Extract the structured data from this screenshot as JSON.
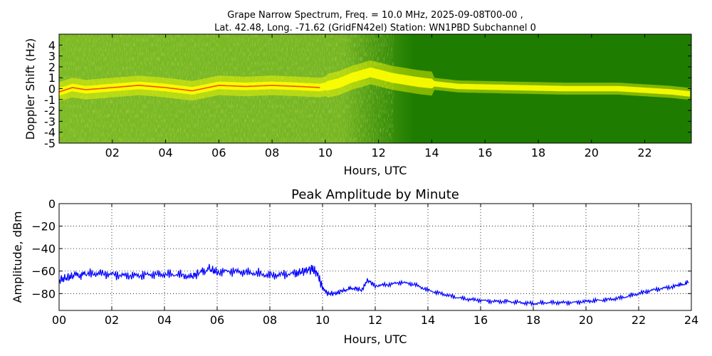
{
  "chart_data": [
    {
      "type": "heatmap",
      "title_line1": "Grape Narrow Spectrum, Freq. = 10.0 MHz, 2025-09-08T00-00 ,",
      "title_line2": "Lat.  42.48, Long. -71.62 (GridFN42el) Station: WN1PBD Subchannel 0",
      "xlabel": "Hours, UTC",
      "ylabel": "Doppler Shift (Hz)",
      "xlim": [
        0,
        23.75
      ],
      "ylim": [
        -5,
        5
      ],
      "x_ticks": [
        "02",
        "04",
        "06",
        "08",
        "10",
        "12",
        "14",
        "16",
        "18",
        "20",
        "22"
      ],
      "x_tick_values": [
        2,
        4,
        6,
        8,
        10,
        12,
        14,
        16,
        18,
        20,
        22
      ],
      "y_ticks": [
        "4",
        "3",
        "2",
        "1",
        "0",
        "-1",
        "-2",
        "-3",
        "-4",
        "-5"
      ],
      "y_tick_values": [
        4,
        3,
        2,
        1,
        0,
        -1,
        -2,
        -3,
        -4,
        -5
      ],
      "colors": {
        "background": "#1e7d00",
        "noise": "#9acd32",
        "signal": "#ffff00",
        "peak": "#ff2a00"
      },
      "ridge": {
        "hours": [
          0,
          0.5,
          1,
          1.5,
          2,
          3,
          4,
          5,
          6,
          7,
          8,
          9,
          9.8,
          10.5,
          11,
          11.7,
          12.5,
          13.5,
          15,
          17,
          19,
          21,
          23,
          23.75
        ],
        "doppler_hz": [
          -0.3,
          0.1,
          -0.1,
          0.0,
          0.1,
          0.3,
          0.1,
          -0.2,
          0.3,
          0.2,
          0.3,
          0.2,
          0.1,
          0.5,
          1.0,
          1.5,
          1.0,
          0.6,
          0.2,
          0.1,
          0.0,
          0.0,
          -0.3,
          -0.5
        ]
      }
    },
    {
      "type": "line",
      "title": "Peak Amplitude by Minute",
      "xlabel": "Hours, UTC",
      "ylabel": "Amplitude, dBm",
      "xlim": [
        0,
        24
      ],
      "ylim": [
        -95,
        0
      ],
      "grid": true,
      "x_ticks": [
        "00",
        "02",
        "04",
        "06",
        "08",
        "10",
        "12",
        "14",
        "16",
        "18",
        "20",
        "22",
        "24"
      ],
      "x_tick_values": [
        0,
        2,
        4,
        6,
        8,
        10,
        12,
        14,
        16,
        18,
        20,
        22,
        24
      ],
      "y_ticks": [
        "0",
        "−20",
        "−40",
        "−60",
        "−80"
      ],
      "y_tick_values": [
        0,
        -20,
        -40,
        -60,
        -80
      ],
      "line_color": "#0000ff",
      "series": [
        {
          "x": [
            0,
            0.3,
            0.6,
            1,
            1.5,
            2,
            2.5,
            3,
            3.5,
            4,
            4.5,
            5,
            5.3,
            5.7,
            6,
            6.5,
            7,
            7.5,
            8,
            8.5,
            9,
            9.3,
            9.6,
            9.8,
            10,
            10.2,
            10.5,
            10.8,
            11.2,
            11.5,
            11.7,
            12,
            12.5,
            13,
            13.5,
            14,
            14.5,
            15,
            15.5,
            16,
            16.5,
            17,
            17.5,
            18,
            18.5,
            19,
            19.5,
            20,
            20.5,
            21,
            21.5,
            22,
            22.5,
            23,
            23.5,
            23.9
          ],
          "y": [
            -68,
            -66,
            -64,
            -63,
            -62,
            -63,
            -64,
            -64,
            -63,
            -63,
            -63,
            -65,
            -62,
            -58,
            -61,
            -60,
            -61,
            -62,
            -64,
            -63,
            -62,
            -60,
            -58,
            -62,
            -75,
            -80,
            -80,
            -77,
            -75,
            -77,
            -68,
            -73,
            -72,
            -70,
            -72,
            -77,
            -80,
            -83,
            -85,
            -86,
            -87,
            -87,
            -88,
            -89,
            -88,
            -88,
            -88,
            -87,
            -86,
            -85,
            -83,
            -80,
            -77,
            -75,
            -73,
            -70
          ]
        }
      ]
    }
  ]
}
